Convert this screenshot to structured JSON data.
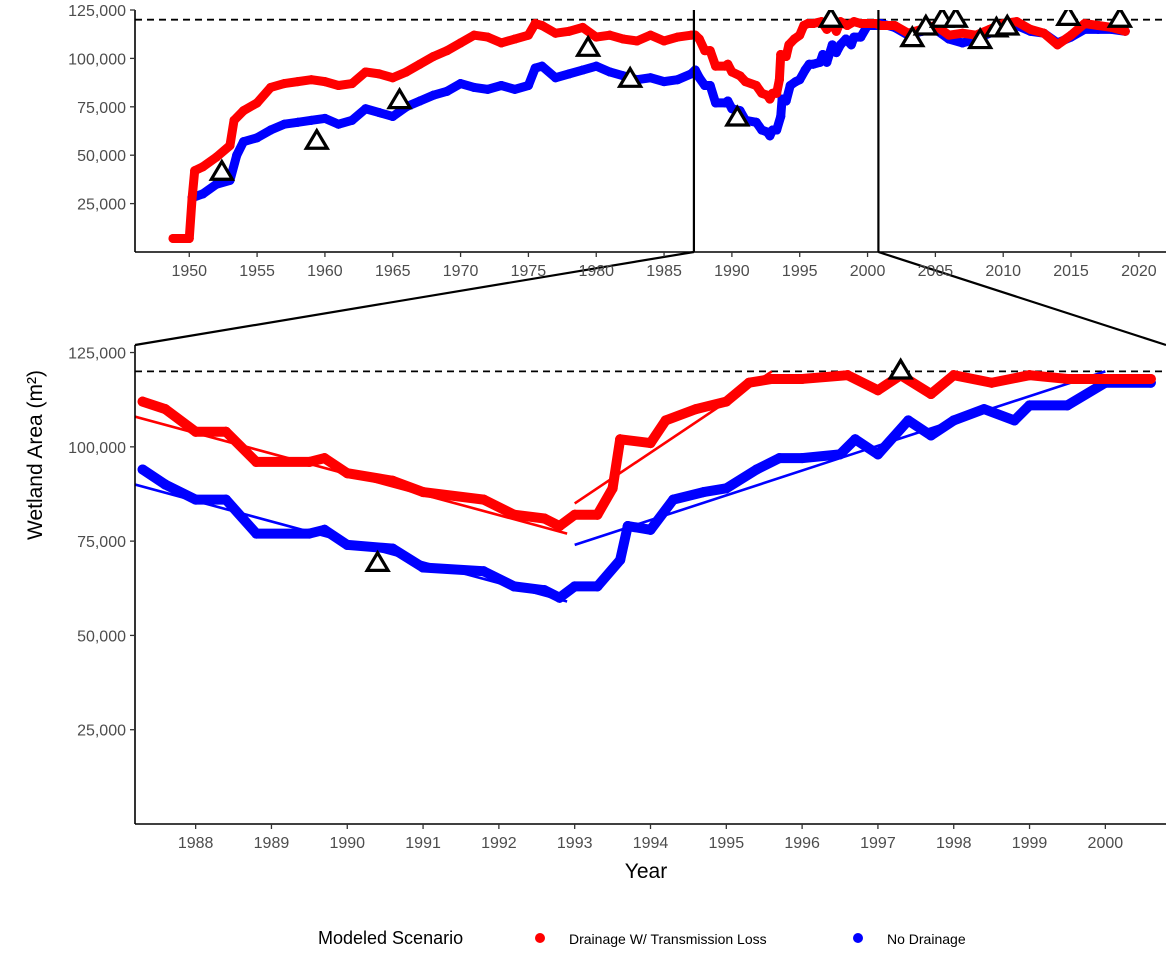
{
  "chart_data": {
    "type": "scatter",
    "ylabel": "Wetland Area (m²)",
    "xlabel": "Year",
    "legend": {
      "title": "Modeled Scenario",
      "position": "bottom"
    },
    "reference_line_y": 120000,
    "panels": [
      {
        "name": "full-record",
        "xlim": [
          1946,
          2022
        ],
        "ylim": [
          0,
          125000
        ],
        "x_ticks": [
          1950,
          1955,
          1960,
          1965,
          1970,
          1975,
          1980,
          1985,
          1990,
          1995,
          2000,
          2005,
          2010,
          2015,
          2020
        ],
        "y_ticks": [
          25000,
          50000,
          75000,
          100000,
          125000
        ],
        "x_tick_labels": [
          "1950",
          "1955",
          "1960",
          "1965",
          "1970",
          "1975",
          "1980",
          "1985",
          "1990",
          "1995",
          "2000",
          "2005",
          "2010",
          "2015",
          "2020"
        ],
        "y_tick_labels": [
          "25,000",
          "50,000",
          "75,000",
          "100,000",
          "125,000"
        ],
        "zoom_window": [
          1987.2,
          2000.8
        ]
      },
      {
        "name": "zoom",
        "xlim": [
          1987.2,
          2000.8
        ],
        "ylim": [
          0,
          127000
        ],
        "x_ticks": [
          1988,
          1989,
          1990,
          1991,
          1992,
          1993,
          1994,
          1995,
          1996,
          1997,
          1998,
          1999,
          2000
        ],
        "y_ticks": [
          25000,
          50000,
          75000,
          100000,
          125000
        ],
        "x_tick_labels": [
          "1988",
          "1989",
          "1990",
          "1991",
          "1992",
          "1993",
          "1994",
          "1995",
          "1996",
          "1997",
          "1998",
          "1999",
          "2000"
        ],
        "y_tick_labels": [
          "25,000",
          "50,000",
          "75,000",
          "100,000",
          "125,000"
        ]
      }
    ],
    "series": [
      {
        "name": "Drainage W/ Transmission Loss",
        "color": "#ff0000",
        "points": [
          [
            1948.8,
            7000
          ],
          [
            1950.0,
            7000
          ],
          [
            1950.2,
            27000
          ],
          [
            1950.4,
            42000
          ],
          [
            1951.0,
            44000
          ],
          [
            1952.0,
            49000
          ],
          [
            1953.0,
            55000
          ],
          [
            1953.3,
            68000
          ],
          [
            1954.0,
            73000
          ],
          [
            1955.0,
            77000
          ],
          [
            1956.0,
            85000
          ],
          [
            1957.0,
            87000
          ],
          [
            1958.0,
            88000
          ],
          [
            1959.0,
            89000
          ],
          [
            1960.0,
            88000
          ],
          [
            1961.0,
            86000
          ],
          [
            1962.0,
            87000
          ],
          [
            1963.0,
            93000
          ],
          [
            1964.0,
            92000
          ],
          [
            1965.0,
            90000
          ],
          [
            1966.0,
            93000
          ],
          [
            1967.0,
            97000
          ],
          [
            1968.0,
            101000
          ],
          [
            1969.0,
            104000
          ],
          [
            1970.0,
            108000
          ],
          [
            1971.0,
            112000
          ],
          [
            1972.0,
            111000
          ],
          [
            1973.0,
            108000
          ],
          [
            1974.0,
            110000
          ],
          [
            1975.0,
            112000
          ],
          [
            1975.5,
            118000
          ],
          [
            1976.0,
            117000
          ],
          [
            1977.0,
            113000
          ],
          [
            1978.0,
            114000
          ],
          [
            1979.0,
            116000
          ],
          [
            1980.0,
            111000
          ],
          [
            1981.0,
            112000
          ],
          [
            1982.0,
            110000
          ],
          [
            1983.0,
            109000
          ],
          [
            1984.0,
            112000
          ],
          [
            1985.0,
            109000
          ],
          [
            1986.0,
            111000
          ],
          [
            1987.0,
            112000
          ],
          [
            1987.3,
            112000
          ],
          [
            1987.6,
            110000
          ],
          [
            1988.0,
            104000
          ],
          [
            1988.4,
            104000
          ],
          [
            1988.8,
            96000
          ],
          [
            1989.5,
            96000
          ],
          [
            1989.7,
            97000
          ],
          [
            1990.0,
            93000
          ],
          [
            1990.6,
            91000
          ],
          [
            1991.0,
            88000
          ],
          [
            1991.8,
            86000
          ],
          [
            1992.2,
            82000
          ],
          [
            1992.6,
            81000
          ],
          [
            1992.8,
            79000
          ],
          [
            1993.0,
            82000
          ],
          [
            1993.3,
            82000
          ],
          [
            1993.5,
            89000
          ],
          [
            1993.6,
            102000
          ],
          [
            1994.0,
            101000
          ],
          [
            1994.2,
            107000
          ],
          [
            1994.6,
            110000
          ],
          [
            1995.0,
            112000
          ],
          [
            1995.3,
            117000
          ],
          [
            1995.6,
            118000
          ],
          [
            1996.0,
            118000
          ],
          [
            1996.6,
            119000
          ],
          [
            1997.0,
            115000
          ],
          [
            1997.3,
            119000
          ],
          [
            1997.7,
            114000
          ],
          [
            1998.0,
            119000
          ],
          [
            1998.5,
            117000
          ],
          [
            1999.0,
            119000
          ],
          [
            1999.5,
            118000
          ],
          [
            2000.0,
            118000
          ],
          [
            2000.6,
            118000
          ],
          [
            2001.0,
            117000
          ],
          [
            2002.0,
            117000
          ],
          [
            2003.0,
            113000
          ],
          [
            2004.0,
            115000
          ],
          [
            2005.0,
            117000
          ],
          [
            2006.0,
            112000
          ],
          [
            2007.0,
            113000
          ],
          [
            2008.0,
            112000
          ],
          [
            2009.0,
            115000
          ],
          [
            2010.0,
            118000
          ],
          [
            2011.0,
            119000
          ],
          [
            2012.0,
            115000
          ],
          [
            2013.0,
            113000
          ],
          [
            2014.0,
            107000
          ],
          [
            2015.0,
            112000
          ],
          [
            2016.0,
            118000
          ],
          [
            2017.0,
            117000
          ],
          [
            2018.0,
            116000
          ],
          [
            2019.0,
            114000
          ]
        ],
        "trend_zoom": [
          [
            [
              1987.2,
              108000
            ],
            [
              1992.9,
              77000
            ]
          ],
          [
            [
              1993.0,
              85000
            ],
            [
              1995.6,
              120000
            ]
          ]
        ]
      },
      {
        "name": "No Drainage",
        "color": "#0000ff",
        "points": [
          [
            1950.2,
            28000
          ],
          [
            1951.0,
            30000
          ],
          [
            1952.0,
            35000
          ],
          [
            1953.0,
            37000
          ],
          [
            1953.5,
            50000
          ],
          [
            1954.0,
            57000
          ],
          [
            1955.0,
            59000
          ],
          [
            1956.0,
            63000
          ],
          [
            1957.0,
            66000
          ],
          [
            1958.0,
            67000
          ],
          [
            1959.0,
            68000
          ],
          [
            1960.0,
            69000
          ],
          [
            1961.0,
            66000
          ],
          [
            1962.0,
            68000
          ],
          [
            1963.0,
            74000
          ],
          [
            1964.0,
            72000
          ],
          [
            1965.0,
            70000
          ],
          [
            1966.0,
            75000
          ],
          [
            1967.0,
            78000
          ],
          [
            1968.0,
            81000
          ],
          [
            1969.0,
            83000
          ],
          [
            1970.0,
            87000
          ],
          [
            1971.0,
            85000
          ],
          [
            1972.0,
            84000
          ],
          [
            1973.0,
            86000
          ],
          [
            1974.0,
            84000
          ],
          [
            1975.0,
            86000
          ],
          [
            1975.5,
            95000
          ],
          [
            1976.0,
            96000
          ],
          [
            1977.0,
            90000
          ],
          [
            1978.0,
            92000
          ],
          [
            1979.0,
            94000
          ],
          [
            1980.0,
            96000
          ],
          [
            1981.0,
            93000
          ],
          [
            1982.0,
            91000
          ],
          [
            1983.0,
            89000
          ],
          [
            1984.0,
            90000
          ],
          [
            1985.0,
            88000
          ],
          [
            1986.0,
            89000
          ],
          [
            1987.0,
            92000
          ],
          [
            1987.3,
            94000
          ],
          [
            1987.6,
            90000
          ],
          [
            1988.0,
            86000
          ],
          [
            1988.4,
            86000
          ],
          [
            1988.8,
            77000
          ],
          [
            1989.5,
            77000
          ],
          [
            1989.7,
            78000
          ],
          [
            1990.0,
            74000
          ],
          [
            1990.6,
            73000
          ],
          [
            1991.0,
            68000
          ],
          [
            1991.8,
            67000
          ],
          [
            1992.2,
            63000
          ],
          [
            1992.6,
            62000
          ],
          [
            1992.8,
            60000
          ],
          [
            1993.0,
            63000
          ],
          [
            1993.3,
            63000
          ],
          [
            1993.6,
            70000
          ],
          [
            1993.7,
            79000
          ],
          [
            1994.0,
            78000
          ],
          [
            1994.3,
            86000
          ],
          [
            1994.7,
            88000
          ],
          [
            1995.0,
            89000
          ],
          [
            1995.4,
            94000
          ],
          [
            1995.7,
            97000
          ],
          [
            1996.0,
            97000
          ],
          [
            1996.5,
            98000
          ],
          [
            1996.7,
            102000
          ],
          [
            1997.0,
            98000
          ],
          [
            1997.4,
            107000
          ],
          [
            1997.7,
            103000
          ],
          [
            1998.0,
            107000
          ],
          [
            1998.4,
            110000
          ],
          [
            1998.8,
            107000
          ],
          [
            1999.0,
            111000
          ],
          [
            1999.5,
            111000
          ],
          [
            2000.0,
            117000
          ],
          [
            2000.6,
            117000
          ],
          [
            2001.0,
            118000
          ],
          [
            2002.0,
            116000
          ],
          [
            2003.0,
            112000
          ],
          [
            2004.0,
            114000
          ],
          [
            2005.0,
            115000
          ],
          [
            2006.0,
            110000
          ],
          [
            2007.0,
            108000
          ],
          [
            2008.0,
            110000
          ],
          [
            2009.0,
            113000
          ],
          [
            2010.0,
            116000
          ],
          [
            2011.0,
            117000
          ],
          [
            2012.0,
            114000
          ],
          [
            2013.0,
            113000
          ],
          [
            2014.0,
            108000
          ],
          [
            2015.0,
            111000
          ],
          [
            2016.0,
            115000
          ],
          [
            2017.0,
            115000
          ],
          [
            2018.0,
            115000
          ],
          [
            2019.0,
            114000
          ]
        ],
        "trend_zoom": [
          [
            [
              1987.2,
              90000
            ],
            [
              1992.9,
              59000
            ]
          ],
          [
            [
              1993.0,
              74000
            ],
            [
              2000.0,
              120000
            ]
          ]
        ]
      }
    ],
    "observations": {
      "marker": "triangle",
      "points": [
        [
          1952.4,
          41000
        ],
        [
          1959.4,
          57000
        ],
        [
          1965.5,
          78000
        ],
        [
          1979.4,
          105000
        ],
        [
          1982.5,
          89000
        ],
        [
          1990.4,
          69000
        ],
        [
          1997.3,
          120000
        ],
        [
          2003.3,
          110000
        ],
        [
          2004.3,
          116000
        ],
        [
          2005.5,
          120000
        ],
        [
          2006.5,
          120000
        ],
        [
          2008.3,
          109000
        ],
        [
          2009.5,
          115000
        ],
        [
          2010.3,
          116000
        ],
        [
          2014.8,
          121000
        ],
        [
          2018.6,
          120000
        ]
      ]
    }
  }
}
